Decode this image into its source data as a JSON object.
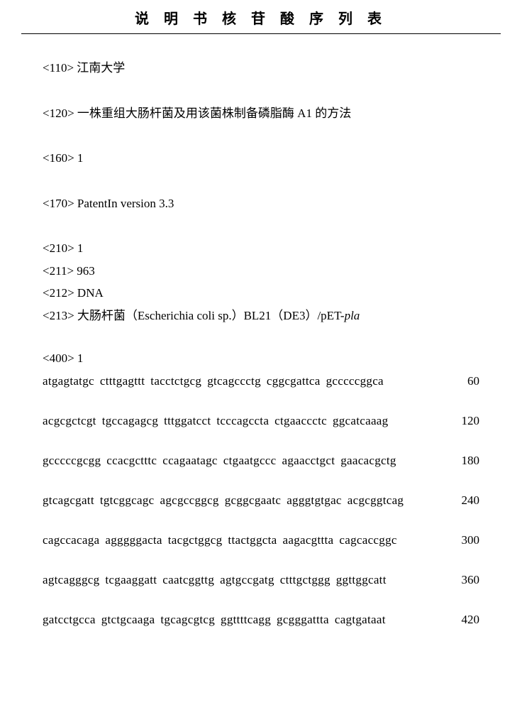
{
  "title": "说 明 书 核 苷 酸 序 列 表",
  "fields": {
    "f110": "<110>  江南大学",
    "f120": "<120>  一株重组大肠杆菌及用该菌株制备磷脂酶 A1 的方法",
    "f160": "<160> 1",
    "f170": "<170> PatentIn version 3.3",
    "f210": "<210> 1",
    "f211": "<211> 963",
    "f212": "<212> DNA",
    "f213_prefix": "<213>  大肠杆菌（Escherichia coli sp.）BL21（DE3）/pET-",
    "f213_italic": "pla",
    "f400": "<400> 1"
  },
  "sequence": {
    "rows": [
      {
        "blocks": [
          "atgagtatgc",
          "ctttgagttt",
          "tacctctgcg",
          "gtcagccctg",
          "cggcgattca",
          "gcccccggca"
        ],
        "pos": "60"
      },
      {
        "blocks": [
          "acgcgctcgt",
          "tgccagagcg",
          "tttggatcct",
          "tcccagccta",
          "ctgaaccctc",
          "ggcatcaaag"
        ],
        "pos": "120"
      },
      {
        "blocks": [
          "gcccccgcgg",
          "ccacgctttc",
          "ccagaatagc",
          "ctgaatgccc",
          "agaacctgct",
          "gaacacgctg"
        ],
        "pos": "180"
      },
      {
        "blocks": [
          "gtcagcgatt",
          "tgtcggcagc",
          "agcgccggcg",
          "gcggcgaatc",
          "agggtgtgac",
          "acgcggtcag"
        ],
        "pos": "240"
      },
      {
        "blocks": [
          "cagccacaga",
          "agggggacta",
          "tacgctggcg",
          "ttactggcta",
          "aagacgttta",
          "cagcaccggc"
        ],
        "pos": "300"
      },
      {
        "blocks": [
          "agtcagggcg",
          "tcgaaggatt",
          "caatcggttg",
          "agtgccgatg",
          "ctttgctggg",
          "ggttggcatt"
        ],
        "pos": "360"
      },
      {
        "blocks": [
          "gatcctgcca",
          "gtctgcaaga",
          "tgcagcgtcg",
          "ggttttcagg",
          "gcgggattta",
          "cagtgataat"
        ],
        "pos": "420"
      }
    ]
  },
  "colors": {
    "text": "#000000",
    "background": "#ffffff",
    "border": "#000000"
  }
}
